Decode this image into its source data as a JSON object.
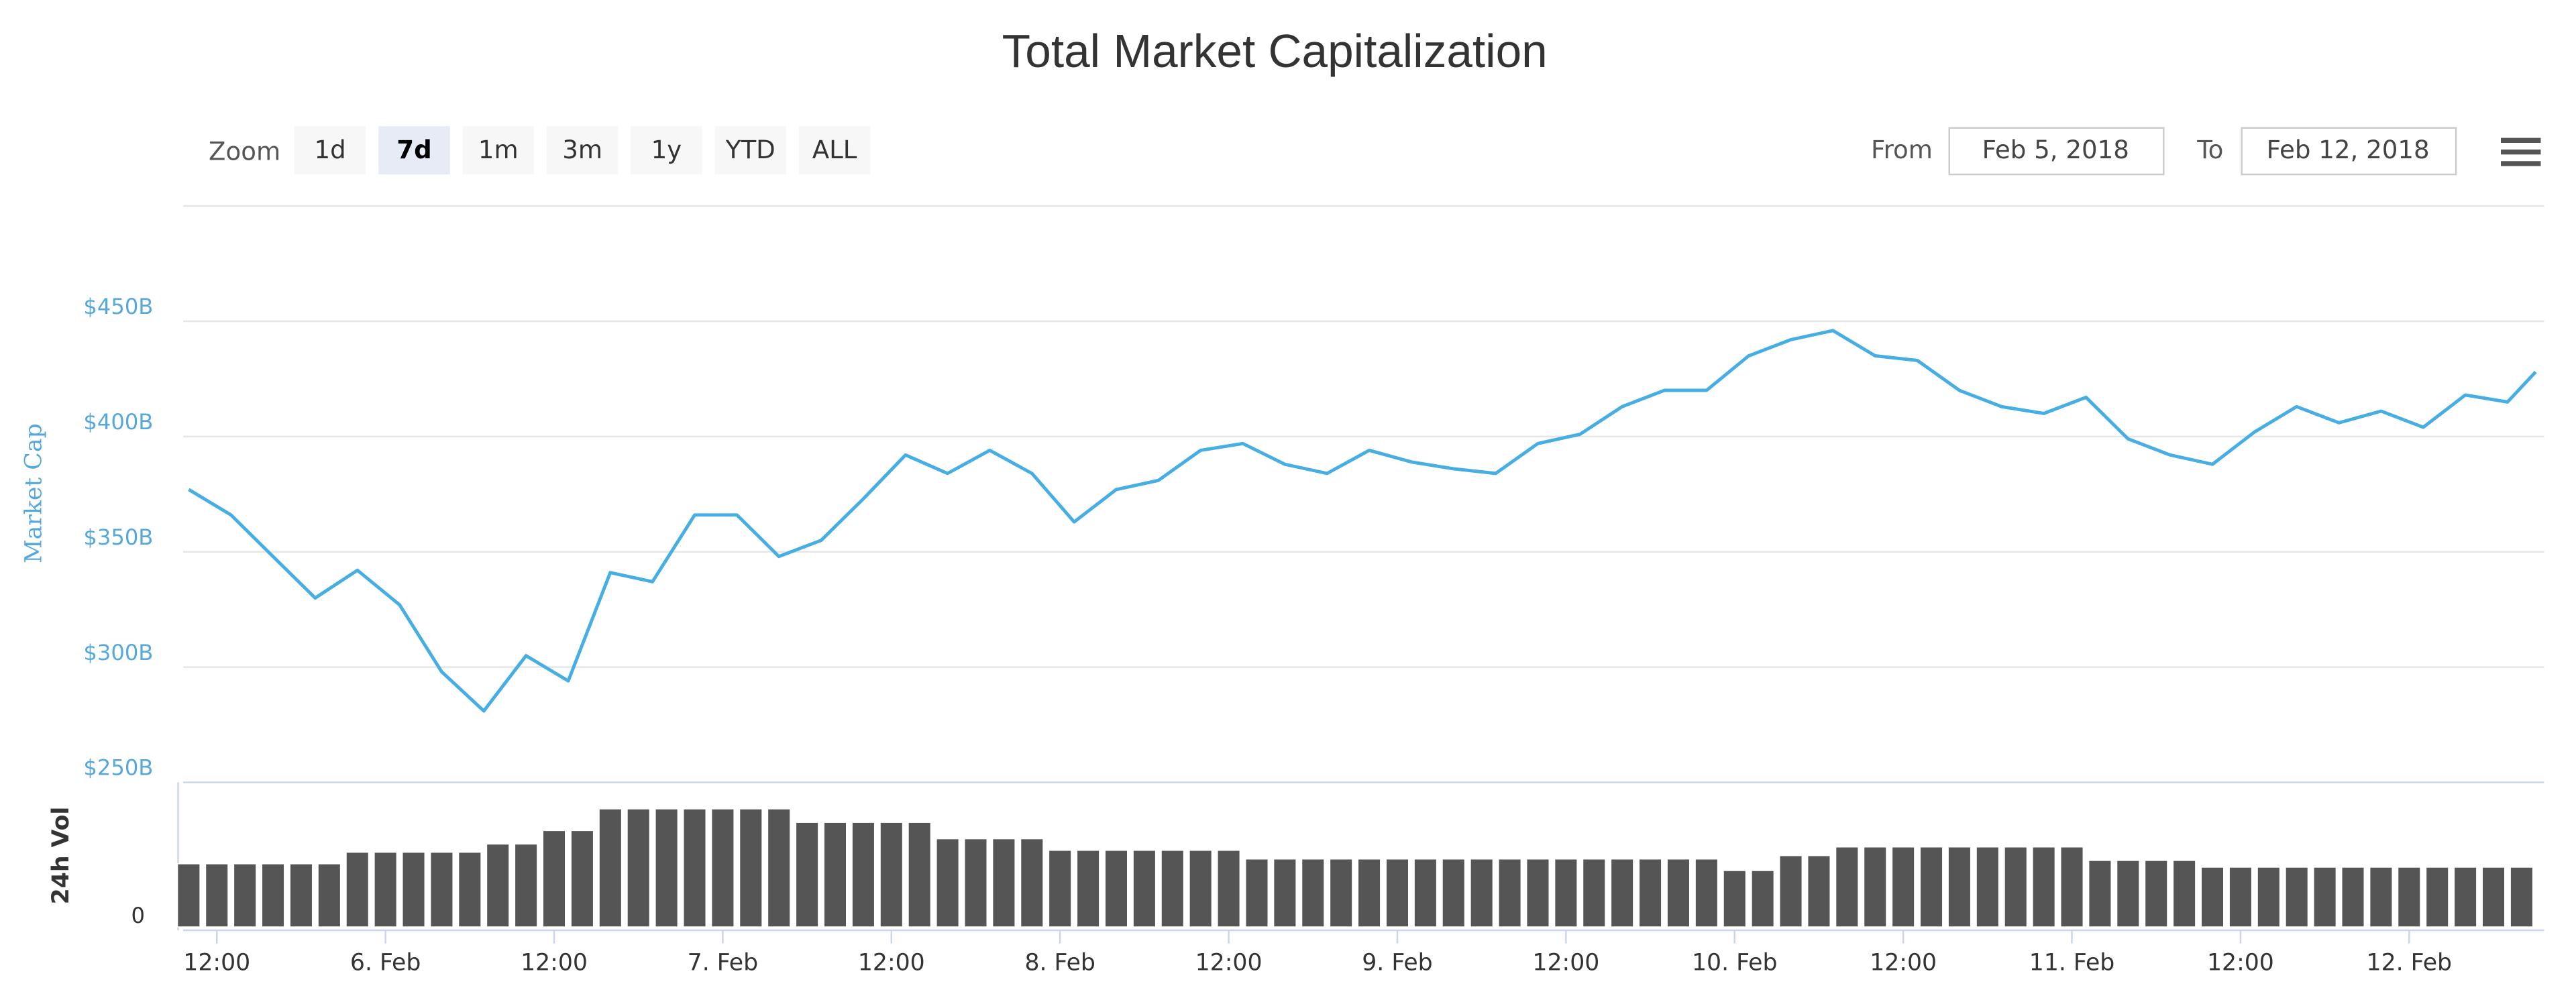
{
  "controls": {
    "zoom_label": "Zoom",
    "zoom_buttons": [
      "1d",
      "7d",
      "1m",
      "3m",
      "1y",
      "YTD",
      "ALL"
    ],
    "selected_index": 1,
    "from_label": "From",
    "from": "Feb 5, 2018",
    "to_label": "To",
    "to": "Feb 12, 2018"
  },
  "chart_data": {
    "type": "line",
    "title": "Total Market Capitalization",
    "y_label": "Market Cap",
    "y2_label": "24h Vol",
    "xlim": [
      "2018-02-05 09:36",
      "2018-02-12 09:36"
    ],
    "xticks": [
      {
        "value": "2018-02-05 12:00",
        "label": "12:00"
      },
      {
        "value": "2018-02-06 00:00",
        "label": "6. Feb"
      },
      {
        "value": "2018-02-06 12:00",
        "label": "12:00"
      },
      {
        "value": "2018-02-07 00:00",
        "label": "7. Feb"
      },
      {
        "value": "2018-02-07 12:00",
        "label": "12:00"
      },
      {
        "value": "2018-02-08 00:00",
        "label": "8. Feb"
      },
      {
        "value": "2018-02-08 12:00",
        "label": "12:00"
      },
      {
        "value": "2018-02-09 00:00",
        "label": "9. Feb"
      },
      {
        "value": "2018-02-09 12:00",
        "label": "12:00"
      },
      {
        "value": "2018-02-10 00:00",
        "label": "10. Feb"
      },
      {
        "value": "2018-02-10 12:00",
        "label": "12:00"
      },
      {
        "value": "2018-02-11 00:00",
        "label": "11. Feb"
      },
      {
        "value": "2018-02-11 12:00",
        "label": "12:00"
      },
      {
        "value": "2018-02-12 00:00",
        "label": "12. Feb"
      }
    ],
    "ylim": [
      250,
      500
    ],
    "yticks": [
      {
        "value": 250,
        "label": "$250B"
      },
      {
        "value": 300,
        "label": "$300B"
      },
      {
        "value": 350,
        "label": "$350B"
      },
      {
        "value": 400,
        "label": "$400B"
      },
      {
        "value": 450,
        "label": "$450B"
      }
    ],
    "y2lim": [
      0,
      30
    ],
    "y2ticks": [
      0
    ],
    "grid": true,
    "series": [
      {
        "color": "#46aee2",
        "x": [
          "2018-02-05 10:00",
          "2018-02-05 13:00",
          "2018-02-05 16:00",
          "2018-02-05 19:00",
          "2018-02-05 22:00",
          "2018-02-06 01:00",
          "2018-02-06 04:00",
          "2018-02-06 07:00",
          "2018-02-06 10:00",
          "2018-02-06 13:00",
          "2018-02-06 16:00",
          "2018-02-06 19:00",
          "2018-02-06 22:00",
          "2018-02-07 01:00",
          "2018-02-07 04:00",
          "2018-02-07 07:00",
          "2018-02-07 10:00",
          "2018-02-07 13:00",
          "2018-02-07 16:00",
          "2018-02-07 19:00",
          "2018-02-07 22:00",
          "2018-02-08 01:00",
          "2018-02-08 04:00",
          "2018-02-08 07:00",
          "2018-02-08 10:00",
          "2018-02-08 13:00",
          "2018-02-08 16:00",
          "2018-02-08 19:00",
          "2018-02-08 22:00",
          "2018-02-09 01:00",
          "2018-02-09 04:00",
          "2018-02-09 07:00",
          "2018-02-09 10:00",
          "2018-02-09 13:00",
          "2018-02-09 16:00",
          "2018-02-09 19:00",
          "2018-02-09 22:00",
          "2018-02-10 01:00",
          "2018-02-10 04:00",
          "2018-02-10 07:00",
          "2018-02-10 10:00",
          "2018-02-10 13:00",
          "2018-02-10 16:00",
          "2018-02-10 19:00",
          "2018-02-10 22:00",
          "2018-02-11 01:00",
          "2018-02-11 04:00",
          "2018-02-11 07:00",
          "2018-02-11 10:00",
          "2018-02-11 13:00",
          "2018-02-11 16:00",
          "2018-02-11 19:00",
          "2018-02-11 22:00",
          "2018-02-12 01:00",
          "2018-02-12 04:00",
          "2018-02-12 07:00",
          "2018-02-12 09:00"
        ],
        "values": [
          377,
          366,
          348,
          330,
          342,
          327,
          298,
          281,
          305,
          294,
          341,
          337,
          366,
          366,
          348,
          355,
          373,
          392,
          384,
          394,
          384,
          363,
          377,
          381,
          394,
          397,
          388,
          384,
          394,
          389,
          386,
          384,
          397,
          401,
          413,
          420,
          420,
          435,
          442,
          446,
          435,
          433,
          420,
          413,
          410,
          417,
          399,
          392,
          388,
          402,
          413,
          406,
          411,
          404,
          418,
          415,
          428
        ]
      },
      {
        "type": "bar",
        "axis": "y2",
        "color": "#555555",
        "x": [
          "2018-02-05 10:00",
          "2018-02-05 12:00",
          "2018-02-05 14:00",
          "2018-02-05 16:00",
          "2018-02-05 18:00",
          "2018-02-05 20:00",
          "2018-02-05 22:00",
          "2018-02-06 00:00",
          "2018-02-06 02:00",
          "2018-02-06 04:00",
          "2018-02-06 06:00",
          "2018-02-06 08:00",
          "2018-02-06 10:00",
          "2018-02-06 12:00",
          "2018-02-06 14:00",
          "2018-02-06 16:00",
          "2018-02-06 18:00",
          "2018-02-06 20:00",
          "2018-02-06 22:00",
          "2018-02-07 00:00",
          "2018-02-07 02:00",
          "2018-02-07 04:00",
          "2018-02-07 06:00",
          "2018-02-07 08:00",
          "2018-02-07 10:00",
          "2018-02-07 12:00",
          "2018-02-07 14:00",
          "2018-02-07 16:00",
          "2018-02-07 18:00",
          "2018-02-07 20:00",
          "2018-02-07 22:00",
          "2018-02-08 00:00",
          "2018-02-08 02:00",
          "2018-02-08 04:00",
          "2018-02-08 06:00",
          "2018-02-08 08:00",
          "2018-02-08 10:00",
          "2018-02-08 12:00",
          "2018-02-08 14:00",
          "2018-02-08 16:00",
          "2018-02-08 18:00",
          "2018-02-08 20:00",
          "2018-02-08 22:00",
          "2018-02-09 00:00",
          "2018-02-09 02:00",
          "2018-02-09 04:00",
          "2018-02-09 06:00",
          "2018-02-09 08:00",
          "2018-02-09 10:00",
          "2018-02-09 12:00",
          "2018-02-09 14:00",
          "2018-02-09 16:00",
          "2018-02-09 18:00",
          "2018-02-09 20:00",
          "2018-02-09 22:00",
          "2018-02-10 00:00",
          "2018-02-10 02:00",
          "2018-02-10 04:00",
          "2018-02-10 06:00",
          "2018-02-10 08:00",
          "2018-02-10 10:00",
          "2018-02-10 12:00",
          "2018-02-10 14:00",
          "2018-02-10 16:00",
          "2018-02-10 18:00",
          "2018-02-10 20:00",
          "2018-02-10 22:00",
          "2018-02-11 00:00",
          "2018-02-11 02:00",
          "2018-02-11 04:00",
          "2018-02-11 06:00",
          "2018-02-11 08:00",
          "2018-02-11 10:00",
          "2018-02-11 12:00",
          "2018-02-11 14:00",
          "2018-02-11 16:00",
          "2018-02-11 18:00",
          "2018-02-11 20:00",
          "2018-02-11 22:00",
          "2018-02-12 00:00",
          "2018-02-12 02:00",
          "2018-02-12 04:00",
          "2018-02-12 06:00",
          "2018-02-12 08:00"
        ],
        "values": [
          13.1,
          13.1,
          13.1,
          13.1,
          13.1,
          13.1,
          15.5,
          15.5,
          15.5,
          15.5,
          15.5,
          17.2,
          17.2,
          20,
          20,
          24.5,
          24.5,
          24.5,
          24.5,
          24.5,
          24.5,
          24.5,
          21.7,
          21.7,
          21.7,
          21.7,
          21.7,
          18.3,
          18.3,
          18.3,
          18.3,
          15.9,
          15.9,
          15.9,
          15.9,
          15.9,
          15.9,
          15.9,
          14.1,
          14.1,
          14.1,
          14.1,
          14.1,
          14.1,
          14.1,
          14.1,
          14.1,
          14.1,
          14.1,
          14.1,
          14.1,
          14.1,
          14.1,
          14.1,
          14.1,
          11.7,
          11.7,
          14.8,
          14.8,
          16.6,
          16.6,
          16.6,
          16.6,
          16.6,
          16.6,
          16.6,
          16.6,
          16.6,
          13.8,
          13.8,
          13.8,
          13.8,
          12.4,
          12.4,
          12.4,
          12.4,
          12.4,
          12.4,
          12.4,
          12.4,
          12.4,
          12.4,
          12.4,
          12.4
        ]
      }
    ]
  }
}
